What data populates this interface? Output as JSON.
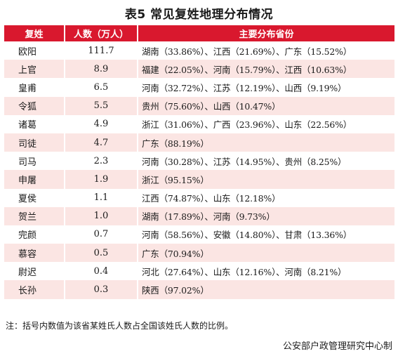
{
  "title": "表5 常见复姓地理分布情况",
  "table": {
    "headers": [
      "复姓",
      "人数（万人）",
      "主要分布省份"
    ],
    "rows": [
      {
        "surname": "欧阳",
        "population": "111.7",
        "provinces": "湖南（33.86%）、江西（21.69%）、广东（15.52%）"
      },
      {
        "surname": "上官",
        "population": "8.9",
        "provinces": "福建（22.05%）、河南（15.79%）、江西（10.63%）"
      },
      {
        "surname": "皇甫",
        "population": "6.5",
        "provinces": "河南（32.72%）、江苏（12.19%）、山西（9.19%）"
      },
      {
        "surname": "令狐",
        "population": "5.5",
        "provinces": "贵州（75.60%）、山西（10.47%）"
      },
      {
        "surname": "诸葛",
        "population": "4.9",
        "provinces": "浙江（31.06%）、广西（23.96%）、山东（22.56%）"
      },
      {
        "surname": "司徒",
        "population": "4.7",
        "provinces": "广东（88.19%）"
      },
      {
        "surname": "司马",
        "population": "2.3",
        "provinces": "河南（30.28%）、江苏（14.95%）、贵州（8.25%）"
      },
      {
        "surname": "申屠",
        "population": "1.9",
        "provinces": "浙江（95.15%）"
      },
      {
        "surname": "夏侯",
        "population": "1.1",
        "provinces": "江西（74.87%）、山东（12.18%）"
      },
      {
        "surname": "贺兰",
        "population": "1.0",
        "provinces": "湖南（17.89%）、河南（9.73%）"
      },
      {
        "surname": "完颜",
        "population": "0.7",
        "provinces": "河南（58.56%）、安徽（14.80%）、甘肃（13.36%）"
      },
      {
        "surname": "慕容",
        "population": "0.5",
        "provinces": "广东（70.94%）"
      },
      {
        "surname": "尉迟",
        "population": "0.4",
        "provinces": "河北（27.64%）、山东（12.16%）、河南（8.21%）"
      },
      {
        "surname": "长孙",
        "population": "0.3",
        "provinces": "陕西（97.02%）"
      }
    ]
  },
  "note": "注：括号内数值为该省某姓氏人数占全国该姓氏人数的比例。",
  "source": "公安部户政管理研究中心制",
  "colors": {
    "header_bg": "#d9182e",
    "stripe_bg": "#fbe5e3"
  }
}
